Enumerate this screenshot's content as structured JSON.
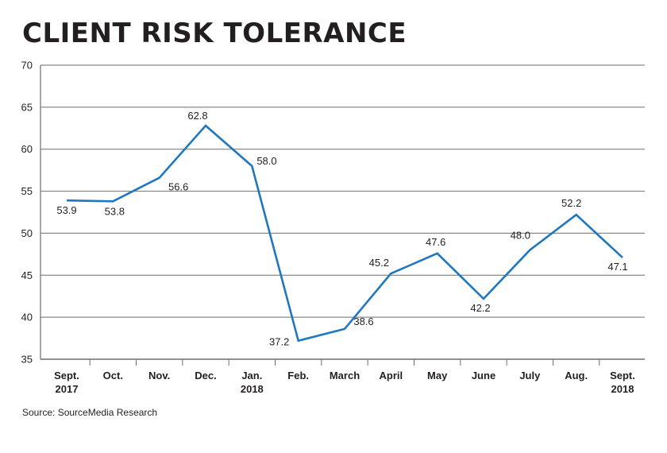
{
  "title": "CLIENT RISK TOLERANCE",
  "source": "Source: SourceMedia Research",
  "colors": {
    "line": "#1f77c0",
    "grid": "#6d6e71",
    "text": "#231f20"
  },
  "chart_data": {
    "type": "line",
    "title": "CLIENT RISK TOLERANCE",
    "categories": [
      [
        "Sept.",
        "2017"
      ],
      [
        "Oct."
      ],
      [
        "Nov."
      ],
      [
        "Dec."
      ],
      [
        "Jan.",
        "2018"
      ],
      [
        "Feb."
      ],
      [
        "March"
      ],
      [
        "April"
      ],
      [
        "May"
      ],
      [
        "June"
      ],
      [
        "July"
      ],
      [
        "Aug."
      ],
      [
        "Sept.",
        "2018"
      ]
    ],
    "values": [
      53.9,
      53.8,
      56.6,
      62.8,
      58.0,
      37.2,
      38.6,
      45.2,
      47.6,
      42.2,
      48.0,
      52.2,
      47.1
    ],
    "data_labels": [
      "53.9",
      "53.8",
      "56.6",
      "62.8",
      "58.0",
      "37.2",
      "38.6",
      "45.2",
      "47.6",
      "42.2",
      "48.0",
      "52.2",
      "47.1"
    ],
    "yticks": [
      35,
      40,
      45,
      50,
      55,
      60,
      65,
      70
    ],
    "ylim": [
      35,
      70
    ],
    "xlabel": "",
    "ylabel": "",
    "grid": true,
    "legend": "none"
  }
}
